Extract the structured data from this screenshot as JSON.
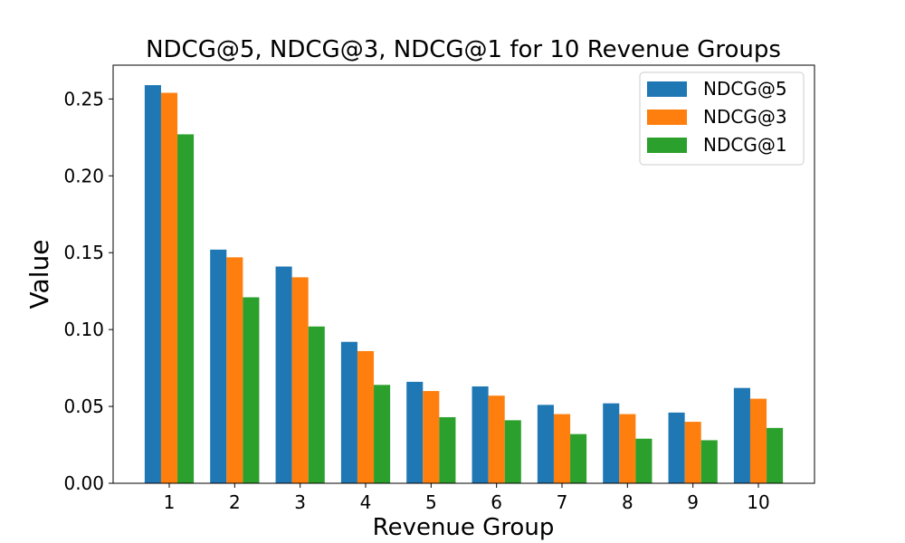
{
  "chart_data": {
    "type": "bar",
    "title": "NDCG@5, NDCG@3, NDCG@1 for 10 Revenue Groups",
    "xlabel": "Revenue Group",
    "ylabel": "Value",
    "categories": [
      "1",
      "2",
      "3",
      "4",
      "5",
      "6",
      "7",
      "8",
      "9",
      "10"
    ],
    "series": [
      {
        "name": "NDCG@5",
        "color": "#1f77b4",
        "values": [
          0.259,
          0.152,
          0.141,
          0.092,
          0.066,
          0.063,
          0.051,
          0.052,
          0.046,
          0.062
        ]
      },
      {
        "name": "NDCG@3",
        "color": "#ff7f0e",
        "values": [
          0.254,
          0.147,
          0.134,
          0.086,
          0.06,
          0.057,
          0.045,
          0.045,
          0.04,
          0.055
        ]
      },
      {
        "name": "NDCG@1",
        "color": "#2ca02c",
        "values": [
          0.227,
          0.121,
          0.102,
          0.064,
          0.043,
          0.041,
          0.032,
          0.029,
          0.028,
          0.036
        ]
      }
    ],
    "ylim": [
      0,
      0.272
    ],
    "yticks": [
      0.0,
      0.05,
      0.1,
      0.15,
      0.2,
      0.25
    ],
    "ytick_labels": [
      "0.00",
      "0.05",
      "0.10",
      "0.15",
      "0.20",
      "0.25"
    ],
    "grid": false,
    "legend_position": "top-right"
  }
}
